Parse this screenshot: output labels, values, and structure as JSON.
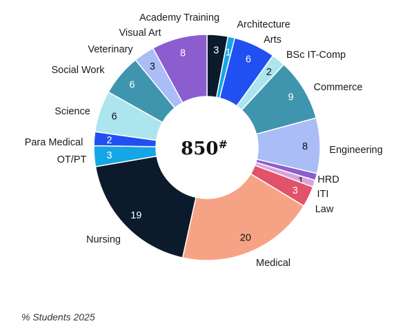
{
  "chart_data": {
    "type": "pie",
    "donut": true,
    "center_label": "850",
    "center_superscript": "#",
    "footer": "% Students 2025",
    "start": "top",
    "direction": "clockwise",
    "categories": [
      "Academy Training",
      "Architecture",
      "Arts",
      "BSc IT-Comp",
      "Commerce",
      "Engineering",
      "HRD",
      "ITI",
      "Law",
      "Medical",
      "Nursing",
      "OT/PT",
      "Para Medical",
      "Science",
      "Social Work",
      "Veterinary",
      "Visual Art"
    ],
    "values": [
      3,
      1,
      6,
      2,
      9,
      8,
      1,
      1,
      3,
      20,
      19,
      3,
      2,
      6,
      6,
      3,
      8
    ],
    "colors": [
      "#0c1b2b",
      "#16a6e6",
      "#2150f2",
      "#ade5ef",
      "#3f95ae",
      "#abbdf6",
      "#8b5dcf",
      "#dba3da",
      "#e1526b",
      "#f6a385",
      "#0c1b2b",
      "#16a6e6",
      "#2150f2",
      "#ade5ef",
      "#3f95ae",
      "#abbdf6",
      "#8b5dcf"
    ]
  }
}
